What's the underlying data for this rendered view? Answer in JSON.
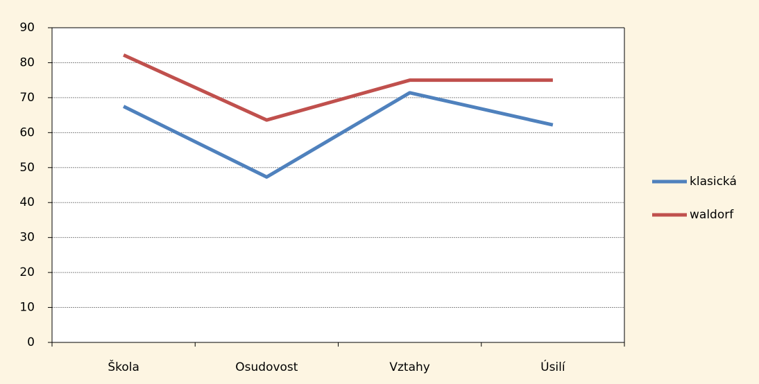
{
  "chart_data": {
    "type": "line",
    "categories": [
      "Škola",
      "Osudovost",
      "Vztahy",
      "Úsilí"
    ],
    "series": [
      {
        "name": "klasická",
        "color": "#4f81bd",
        "values": [
          67.5,
          47.3,
          71.4,
          62.2
        ]
      },
      {
        "name": "waldorf",
        "color": "#c0504d",
        "values": [
          82.2,
          63.6,
          75,
          75
        ]
      }
    ],
    "ylim": [
      0,
      90
    ],
    "yticks": [
      0,
      10,
      20,
      30,
      40,
      50,
      60,
      70,
      80,
      90
    ],
    "grid": true,
    "legend": "right"
  }
}
